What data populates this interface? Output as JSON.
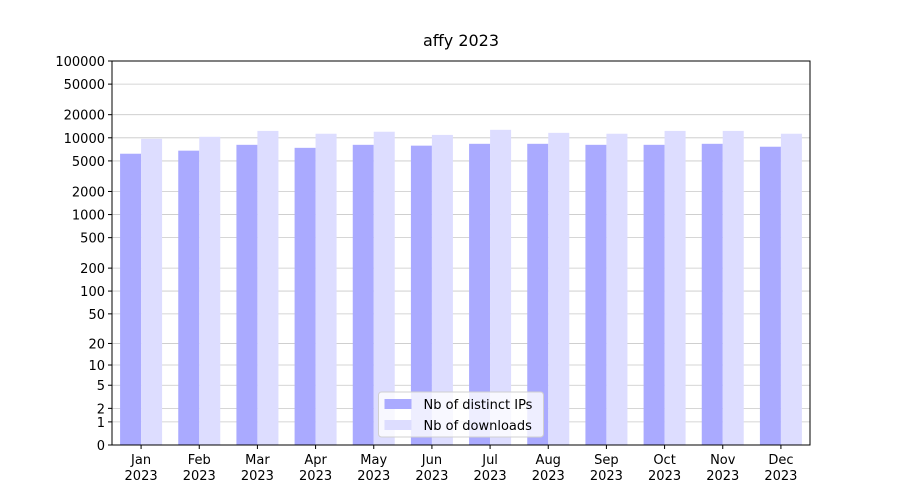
{
  "chart_data": {
    "type": "bar",
    "title": "affy 2023",
    "categories": [
      "Jan 2023",
      "Feb 2023",
      "Mar 2023",
      "Apr 2023",
      "May 2023",
      "Jun 2023",
      "Jul 2023",
      "Aug 2023",
      "Sep 2023",
      "Oct 2023",
      "Nov 2023",
      "Dec 2023"
    ],
    "series": [
      {
        "name": "Nb of distinct IPs",
        "color": "#aaaaff",
        "values": [
          6200,
          6800,
          8100,
          7400,
          8100,
          7900,
          8350,
          8350,
          8100,
          8100,
          8350,
          7650
        ]
      },
      {
        "name": "Nb of downloads",
        "color": "#ddddff",
        "values": [
          9700,
          10300,
          12300,
          11300,
          12000,
          10900,
          12700,
          11600,
          11300,
          12300,
          12300,
          11300
        ]
      }
    ],
    "yscale": "log1p",
    "ylim": [
      0,
      100000
    ],
    "yticks": [
      0,
      1,
      2,
      5,
      10,
      20,
      50,
      100,
      200,
      500,
      1000,
      2000,
      5000,
      10000,
      20000,
      50000,
      100000
    ],
    "grid": true,
    "legend": "lower center"
  }
}
